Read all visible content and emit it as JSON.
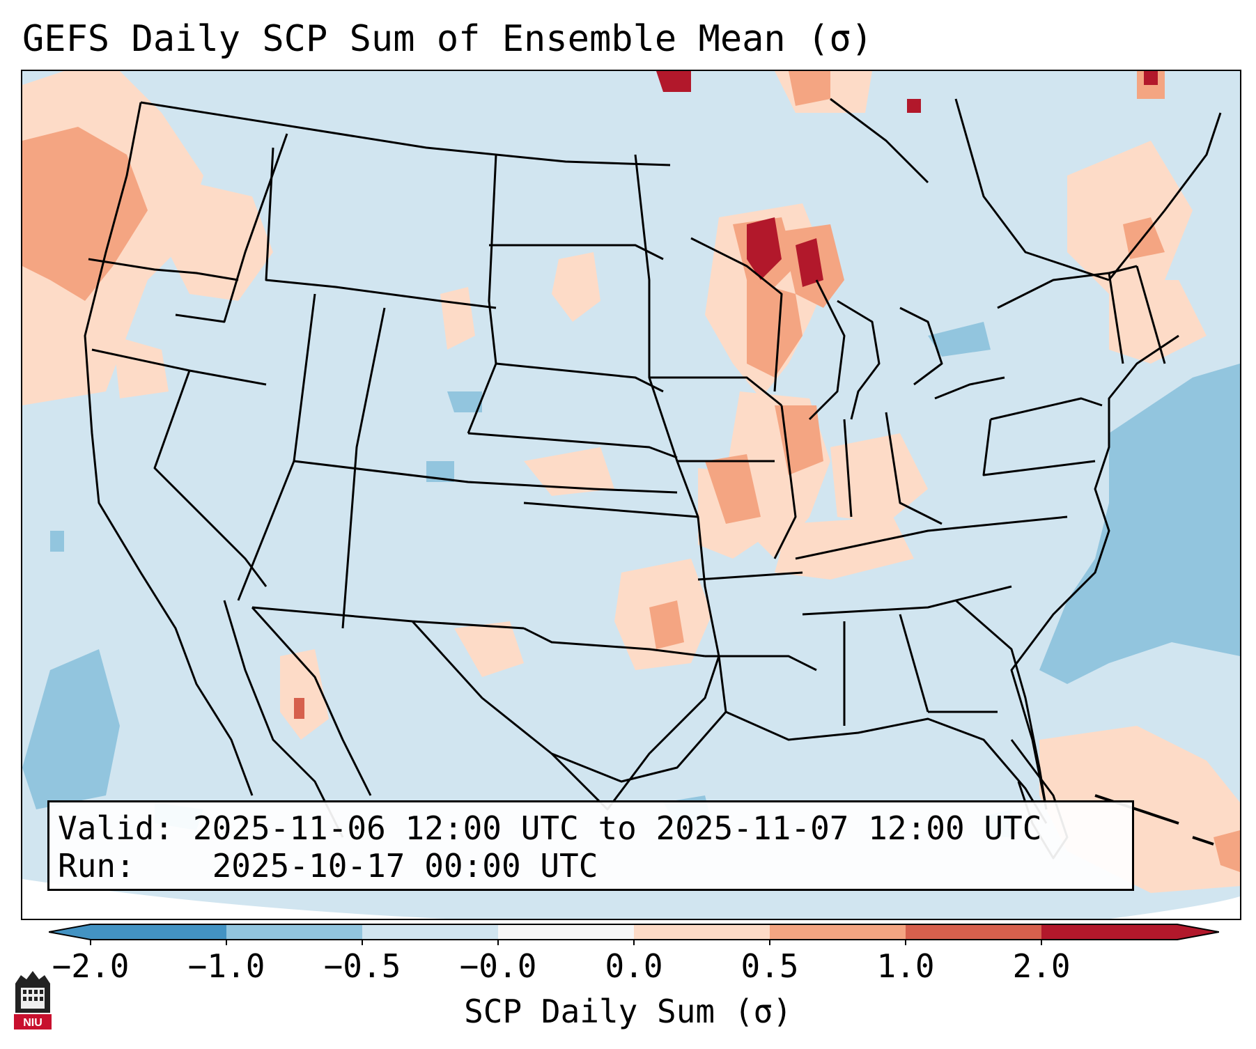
{
  "title": "GEFS Daily SCP Sum of Ensemble Mean (σ)",
  "info": {
    "valid_label": "Valid:",
    "valid_value": "2025-11-06 12:00 UTC to 2025-11-07 12:00 UTC",
    "run_label": "Run:",
    "run_value": "2025-10-17 00:00 UTC"
  },
  "colorbar": {
    "label": "SCP Daily Sum (σ)",
    "ticks": [
      "−2.0",
      "−1.0",
      "−0.5",
      "−0.0",
      "0.0",
      "0.5",
      "1.0",
      "2.0"
    ],
    "colors": [
      "#4393c3",
      "#92c5de",
      "#d1e5f0",
      "#f7f7f7",
      "#fddbc7",
      "#f4a582",
      "#d6604d",
      "#b2182b"
    ]
  },
  "logo": {
    "text": "NIU"
  },
  "map": {
    "region": "Continental United States",
    "dominant_category": "−0.5 to −0.0",
    "notable_positive_areas": [
      "Pacific Northwest coast",
      "Upper Midwest / Wisconsin",
      "Mississippi & Ohio valleys",
      "Southern Plains",
      "Gulf of California",
      "Caribbean",
      "Northeast / Canada"
    ],
    "notable_negative_areas": [
      "Western Atlantic",
      "Eastern Pacific",
      "Gulf of Mexico"
    ]
  }
}
